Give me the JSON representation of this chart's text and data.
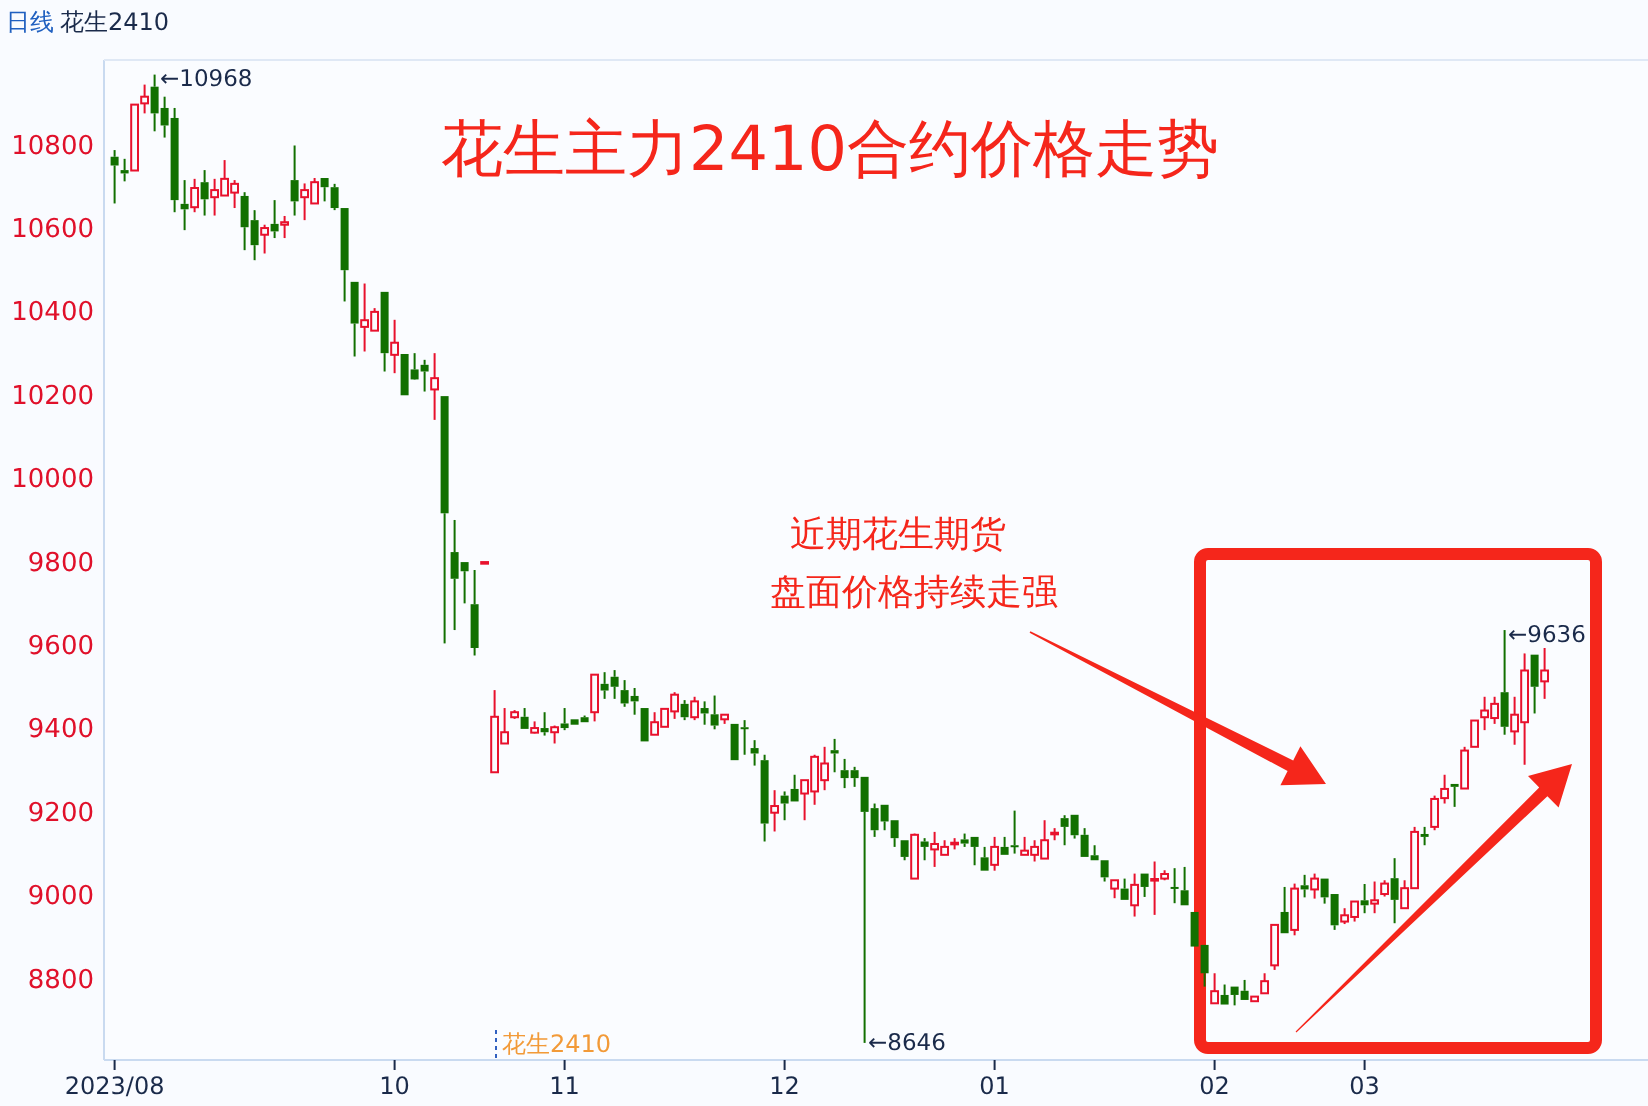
{
  "chart_data": {
    "type": "candlestick",
    "title": "花生主力2410合约价格走势",
    "categories": [
      "2023/08",
      null,
      null,
      null,
      null,
      null,
      null,
      null,
      null,
      null,
      null,
      null,
      null,
      null,
      null,
      null,
      null,
      null,
      null,
      null,
      null,
      null,
      null,
      null,
      null,
      null,
      null,
      null,
      "10",
      null,
      null,
      null,
      null,
      null,
      null,
      null,
      null,
      null,
      null,
      null,
      null,
      null,
      null,
      null,
      null,
      "11",
      null,
      null,
      null,
      null,
      null,
      null,
      null,
      null,
      null,
      null,
      null,
      null,
      null,
      null,
      null,
      null,
      null,
      null,
      null,
      null,
      null,
      "12",
      null,
      null,
      null,
      null,
      null,
      null,
      null,
      null,
      null,
      null,
      null,
      null,
      null,
      null,
      null,
      null,
      null,
      null,
      null,
      null,
      "01",
      null,
      null,
      null,
      null,
      null,
      null,
      null,
      null,
      null,
      null,
      null,
      null,
      null,
      null,
      null,
      null,
      null,
      null,
      null,
      null,
      null,
      "02",
      null,
      null,
      null,
      null,
      null,
      null,
      null,
      null,
      null,
      null,
      null,
      null,
      null,
      null,
      "03",
      null,
      null,
      null,
      null,
      null,
      null,
      null,
      null,
      null,
      null,
      null,
      null,
      null,
      null,
      null,
      null,
      null,
      null
    ],
    "ohlc": [
      [
        10771,
        10787,
        10659,
        10750
      ],
      [
        10739,
        10766,
        10712,
        10731
      ],
      [
        10738,
        10896,
        10738,
        10896
      ],
      [
        10899,
        10944,
        10875,
        10915
      ],
      [
        10939,
        10968,
        10832,
        10875
      ],
      [
        10888,
        10915,
        10817,
        10846
      ],
      [
        10864,
        10888,
        10638,
        10667
      ],
      [
        10658,
        10715,
        10595,
        10645
      ],
      [
        10650,
        10718,
        10638,
        10696
      ],
      [
        10710,
        10739,
        10630,
        10669
      ],
      [
        10674,
        10718,
        10630,
        10691
      ],
      [
        10678,
        10763,
        10678,
        10718
      ],
      [
        10685,
        10715,
        10648,
        10706
      ],
      [
        10677,
        10686,
        10547,
        10602
      ],
      [
        10619,
        10643,
        10523,
        10559
      ],
      [
        10584,
        10608,
        10539,
        10600
      ],
      [
        10610,
        10667,
        10576,
        10592
      ],
      [
        10608,
        10629,
        10576,
        10614
      ],
      [
        10715,
        10798,
        10630,
        10664
      ],
      [
        10674,
        10707,
        10619,
        10691
      ],
      [
        10659,
        10720,
        10659,
        10710
      ],
      [
        10720,
        10720,
        10664,
        10698
      ],
      [
        10698,
        10706,
        10643,
        10648
      ],
      [
        10648,
        10648,
        10424,
        10499
      ],
      [
        10471,
        10471,
        10292,
        10371
      ],
      [
        10363,
        10467,
        10304,
        10379
      ],
      [
        10354,
        10408,
        10354,
        10399
      ],
      [
        10447,
        10447,
        10256,
        10300
      ],
      [
        10296,
        10380,
        10252,
        10325
      ],
      [
        10298,
        10298,
        10199,
        10199
      ],
      [
        10261,
        10300,
        10236,
        10237
      ],
      [
        10272,
        10284,
        10208,
        10256
      ],
      [
        10213,
        10300,
        10140,
        10240
      ],
      [
        10197,
        10197,
        9604,
        9916
      ],
      [
        9823,
        9900,
        9636,
        9759
      ],
      [
        9799,
        9799,
        9700,
        9777
      ],
      [
        9698,
        9780,
        9575,
        9593
      ],
      [
        9799,
        9799,
        9799,
        9799
      ],
      [
        9295,
        9492,
        9295,
        9428
      ],
      [
        9364,
        9449,
        9364,
        9391
      ],
      [
        9427,
        9444,
        9423,
        9439
      ],
      [
        9428,
        9449,
        9399,
        9399
      ],
      [
        9390,
        9417,
        9388,
        9401
      ],
      [
        9401,
        9439,
        9383,
        9391
      ],
      [
        9391,
        9407,
        9364,
        9403
      ],
      [
        9412,
        9449,
        9396,
        9401
      ],
      [
        9422,
        9422,
        9409,
        9409
      ],
      [
        9427,
        9431,
        9415,
        9415
      ],
      [
        9439,
        9529,
        9417,
        9529
      ],
      [
        9507,
        9535,
        9471,
        9491
      ],
      [
        9524,
        9540,
        9471,
        9500
      ],
      [
        9492,
        9516,
        9452,
        9460
      ],
      [
        9478,
        9497,
        9433,
        9465
      ],
      [
        9449,
        9449,
        9369,
        9369
      ],
      [
        9385,
        9439,
        9385,
        9415
      ],
      [
        9404,
        9447,
        9404,
        9447
      ],
      [
        9441,
        9487,
        9423,
        9481
      ],
      [
        9459,
        9468,
        9420,
        9427
      ],
      [
        9427,
        9476,
        9420,
        9465
      ],
      [
        9449,
        9465,
        9409,
        9436
      ],
      [
        9434,
        9479,
        9398,
        9407
      ],
      [
        9422,
        9433,
        9411,
        9433
      ],
      [
        9411,
        9411,
        9324,
        9324
      ],
      [
        9403,
        9420,
        9337,
        9400
      ],
      [
        9353,
        9372,
        9311,
        9340
      ],
      [
        9324,
        9337,
        9129,
        9172
      ],
      [
        9198,
        9252,
        9153,
        9214
      ],
      [
        9239,
        9249,
        9180,
        9220
      ],
      [
        9255,
        9289,
        9225,
        9225
      ],
      [
        9244,
        9276,
        9180,
        9276
      ],
      [
        9249,
        9337,
        9217,
        9332
      ],
      [
        9276,
        9356,
        9252,
        9316
      ],
      [
        9348,
        9375,
        9295,
        9340
      ],
      [
        9300,
        9327,
        9257,
        9281
      ],
      [
        9300,
        9308,
        9260,
        9281
      ],
      [
        9284,
        9284,
        8646,
        9200
      ],
      [
        9209,
        9220,
        9140,
        9156
      ],
      [
        9217,
        9217,
        9156,
        9177
      ],
      [
        9180,
        9180,
        9116,
        9137
      ],
      [
        9132,
        9132,
        9084,
        9092
      ],
      [
        9040,
        9148,
        9040,
        9145
      ],
      [
        9129,
        9137,
        9084,
        9116
      ],
      [
        9110,
        9152,
        9068,
        9123
      ],
      [
        9097,
        9132,
        9097,
        9116
      ],
      [
        9123,
        9137,
        9110,
        9126
      ],
      [
        9134,
        9148,
        9116,
        9124
      ],
      [
        9140,
        9140,
        9072,
        9116
      ],
      [
        9091,
        9116,
        9059,
        9059
      ],
      [
        9073,
        9140,
        9059,
        9116
      ],
      [
        9116,
        9140,
        9097,
        9097
      ],
      [
        9120,
        9203,
        9100,
        9116
      ],
      [
        9097,
        9140,
        9097,
        9107
      ],
      [
        9097,
        9132,
        9081,
        9116
      ],
      [
        9088,
        9180,
        9088,
        9132
      ],
      [
        9147,
        9161,
        9132,
        9150
      ],
      [
        9185,
        9192,
        9120,
        9164
      ],
      [
        9193,
        9193,
        9136,
        9144
      ],
      [
        9145,
        9161,
        9092,
        9092
      ],
      [
        9096,
        9120,
        9084,
        9084
      ],
      [
        9084,
        9084,
        9033,
        9043
      ],
      [
        9016,
        9036,
        8993,
        9036
      ],
      [
        9016,
        9040,
        8989,
        8989
      ],
      [
        8976,
        9052,
        8949,
        9025
      ],
      [
        9052,
        9052,
        8996,
        9020
      ],
      [
        9036,
        9081,
        8953,
        9039
      ],
      [
        9040,
        9060,
        9036,
        9051
      ],
      [
        9020,
        9065,
        8981,
        9016
      ],
      [
        9012,
        9068,
        8976,
        8976
      ],
      [
        8960,
        8960,
        8877,
        8877
      ],
      [
        8881,
        8881,
        8781,
        8813
      ],
      [
        8741,
        8813,
        8741,
        8770
      ],
      [
        8761,
        8786,
        8738,
        8738
      ],
      [
        8781,
        8781,
        8736,
        8761
      ],
      [
        8771,
        8797,
        8749,
        8749
      ],
      [
        8746,
        8757,
        8746,
        8757
      ],
      [
        8765,
        8813,
        8765,
        8794
      ],
      [
        8832,
        8929,
        8821,
        8929
      ],
      [
        8960,
        9020,
        8909,
        8909
      ],
      [
        8917,
        9028,
        8904,
        9016
      ],
      [
        9024,
        9049,
        8995,
        9014
      ],
      [
        9014,
        9052,
        8992,
        9040
      ],
      [
        9040,
        9040,
        8980,
        8995
      ],
      [
        9003,
        9003,
        8917,
        8928
      ],
      [
        8937,
        8969,
        8931,
        8952
      ],
      [
        8948,
        8985,
        8937,
        8985
      ],
      [
        8988,
        9027,
        8957,
        8976
      ],
      [
        8980,
        9033,
        8957,
        8988
      ],
      [
        9003,
        9036,
        8997,
        9028
      ],
      [
        9041,
        9089,
        8933,
        8989
      ],
      [
        8969,
        9036,
        8969,
        9017
      ],
      [
        9017,
        9164,
        9017,
        9152
      ],
      [
        9147,
        9164,
        9120,
        9140
      ],
      [
        9164,
        9239,
        9156,
        9231
      ],
      [
        9233,
        9289,
        9220,
        9255
      ],
      [
        9267,
        9267,
        9212,
        9260
      ],
      [
        9256,
        9356,
        9256,
        9347
      ],
      [
        9356,
        9419,
        9356,
        9419
      ],
      [
        9427,
        9476,
        9396,
        9443
      ],
      [
        9425,
        9476,
        9411,
        9459
      ],
      [
        9487,
        9636,
        9385,
        9404
      ],
      [
        9393,
        9476,
        9361,
        9433
      ],
      [
        9415,
        9580,
        9313,
        9539
      ],
      [
        9577,
        9577,
        9436,
        9500
      ],
      [
        9513,
        9593,
        9471,
        9539
      ]
    ],
    "ylim": [
      8605,
      11003
    ],
    "yticks": [
      8800,
      9000,
      9200,
      9400,
      9600,
      9800,
      10000,
      10200,
      10400,
      10600,
      10800
    ],
    "annotations": [
      "←10968",
      "←9636",
      "←8646",
      "花生2410",
      "近期花生期货",
      "盘面价格持续走强",
      "日线",
      "花生2410"
    ]
  }
}
